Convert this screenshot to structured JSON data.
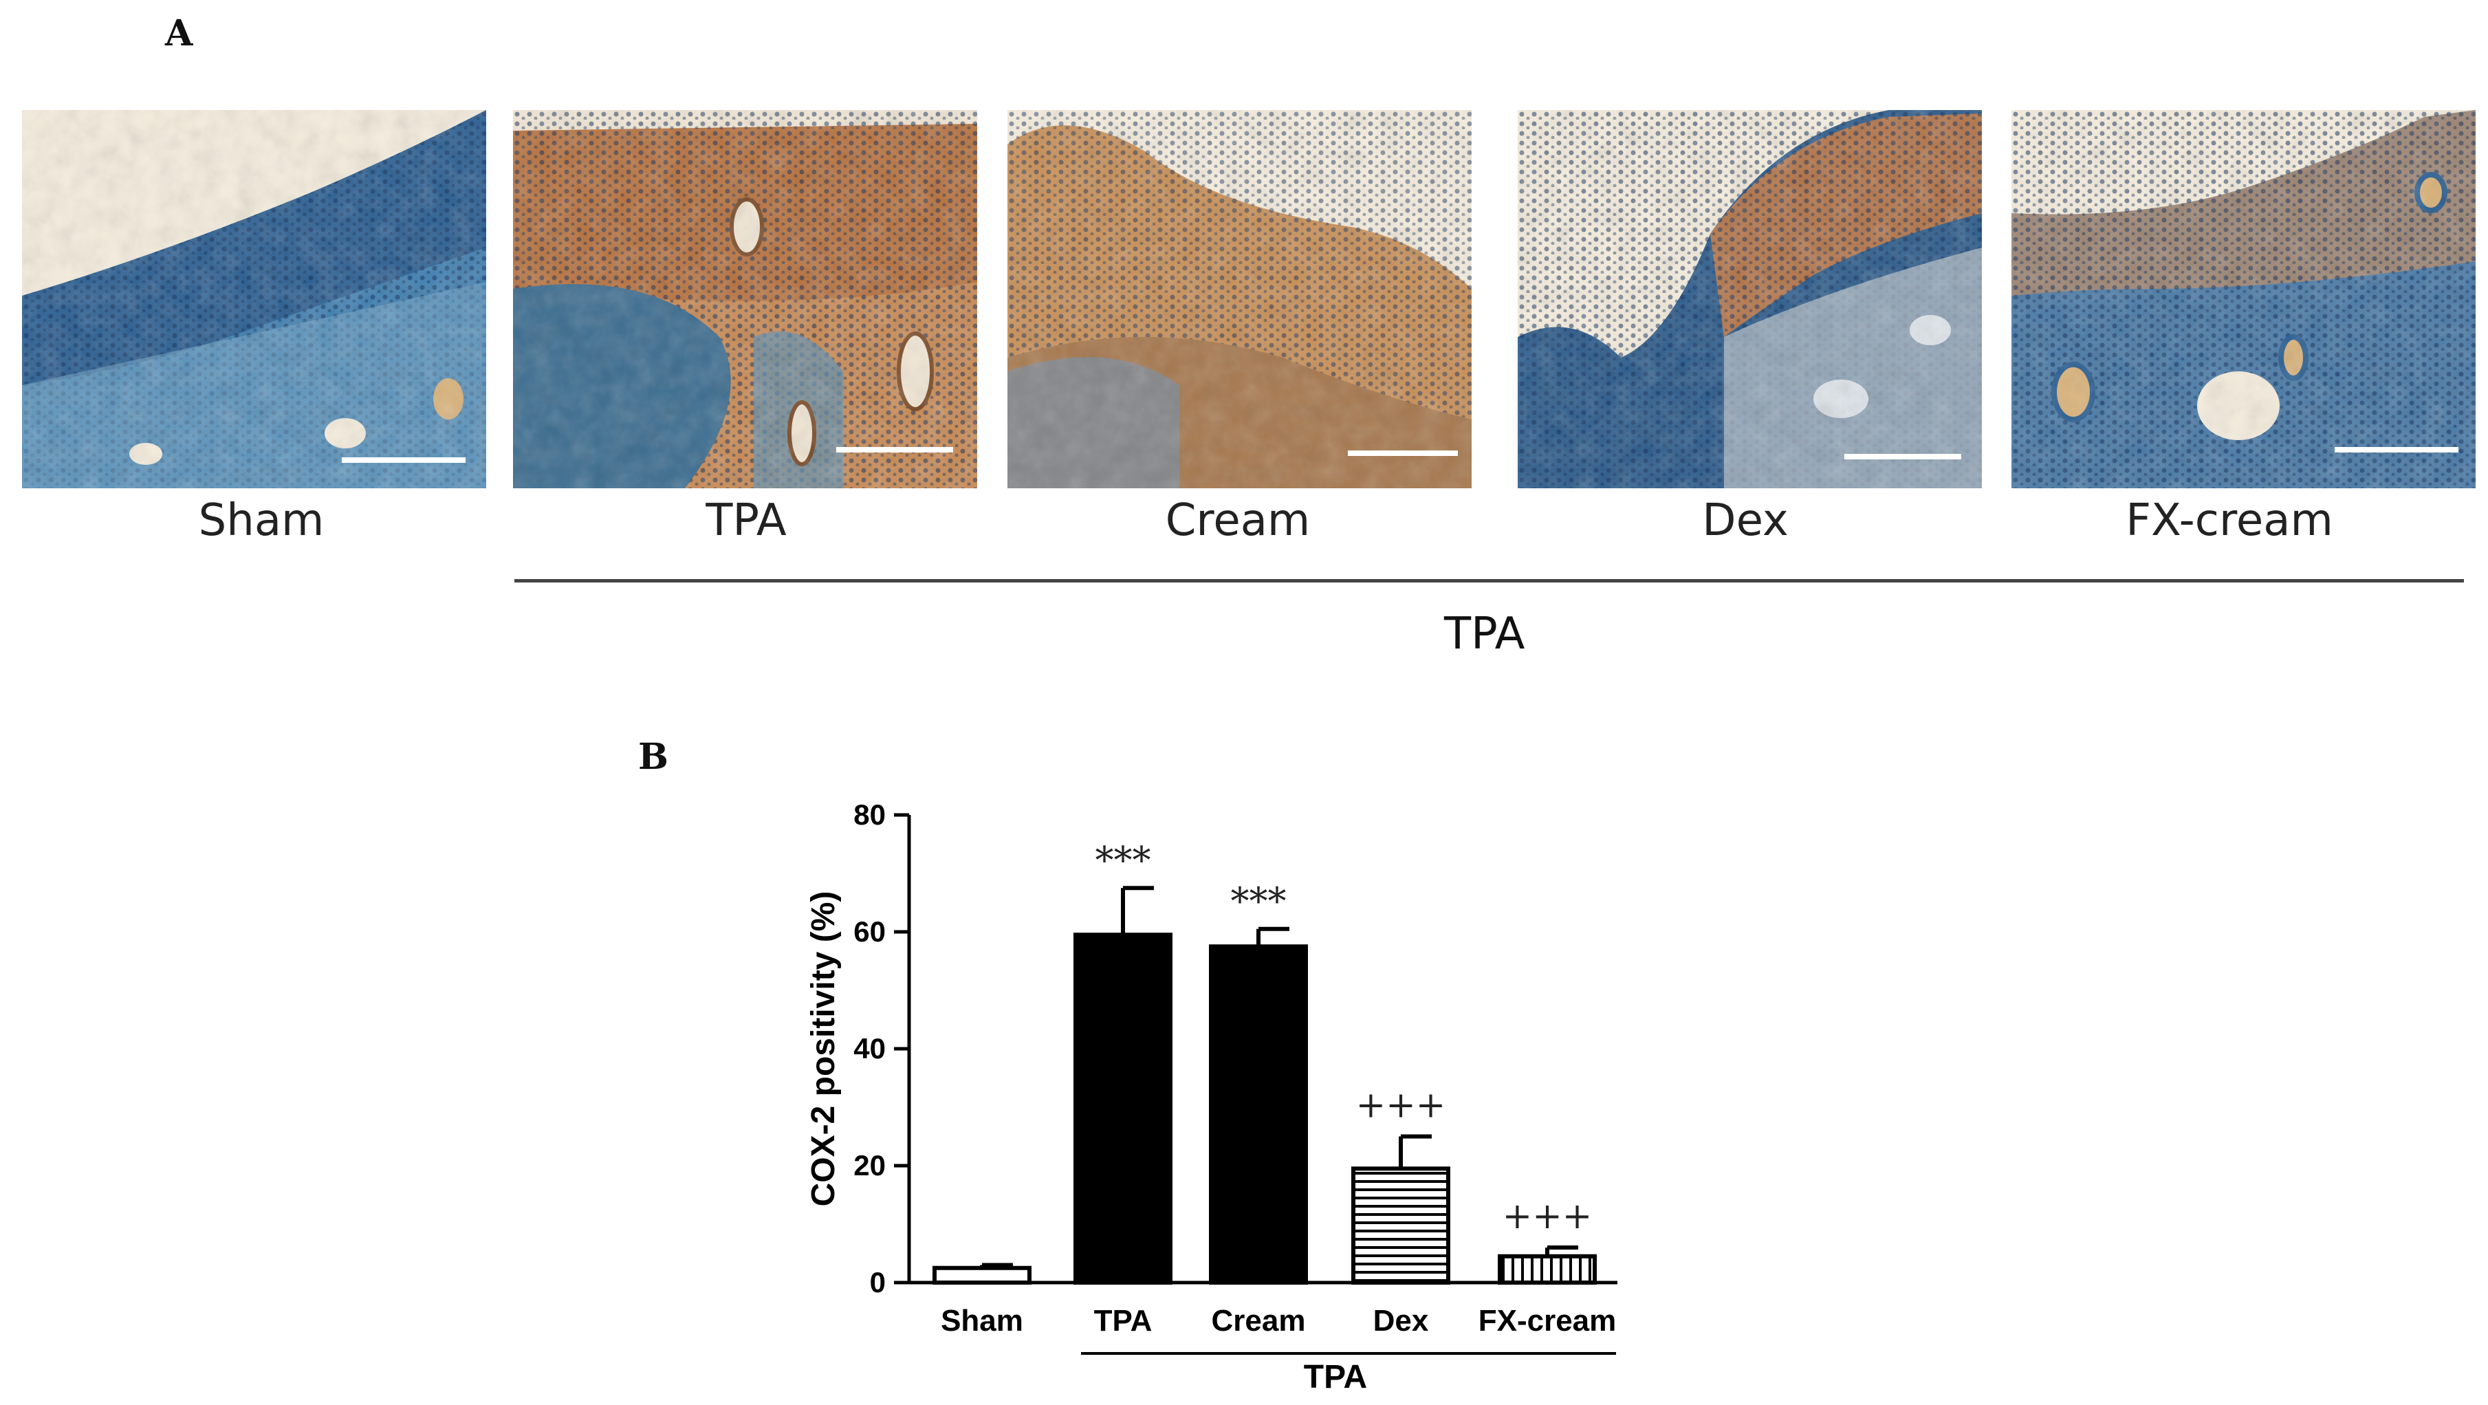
{
  "panel_a": {
    "letter": "A",
    "images": [
      {
        "label": "Sham",
        "staining": "blue",
        "has_scale_bar": true
      },
      {
        "label": "TPA",
        "staining": "brown",
        "has_scale_bar": true
      },
      {
        "label": "Cream",
        "staining": "brown",
        "has_scale_bar": true
      },
      {
        "label": "Dex",
        "staining": "mixed",
        "has_scale_bar": true
      },
      {
        "label": "FX-cream",
        "staining": "blue",
        "has_scale_bar": true
      }
    ],
    "group_label": "TPA"
  },
  "panel_b": {
    "letter": "B"
  },
  "chart_data": {
    "type": "bar",
    "categories": [
      "Sham",
      "TPA",
      "Cream",
      "Dex",
      "FX-cream"
    ],
    "values": [
      2.5,
      59.5,
      57.5,
      19.5,
      4.5
    ],
    "errors": [
      0.5,
      8.0,
      3.0,
      5.5,
      1.5
    ],
    "fills": [
      "white",
      "black",
      "black",
      "horizontal-lines",
      "vertical-lines"
    ],
    "annotations": [
      "",
      "***",
      "***",
      "+++",
      "+++"
    ],
    "ylabel": "COX-2 positivity (%)",
    "xlabel": "",
    "ylim": [
      0,
      80
    ],
    "yticks": [
      0,
      20,
      40,
      60,
      80
    ],
    "group_label": "TPA",
    "grid": false,
    "colors": {
      "bar": "#000000",
      "axis": "#000000"
    }
  }
}
